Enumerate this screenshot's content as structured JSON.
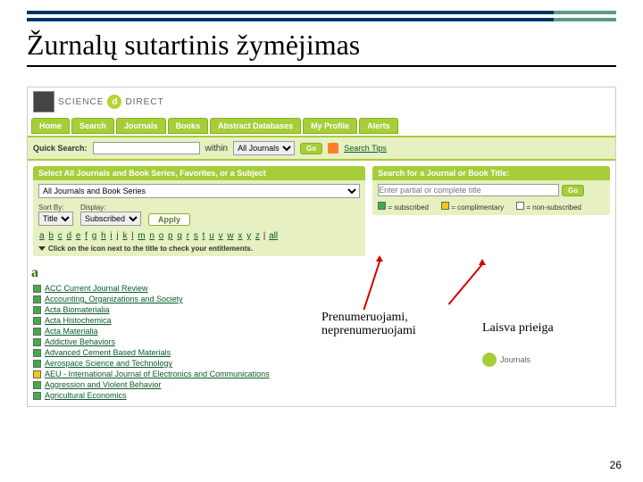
{
  "slide": {
    "title": "Žurnalų sutartinis žymėjimas",
    "page_number": "26"
  },
  "brand": {
    "logo_text": "SCIENCE",
    "direct_text": "DIRECT",
    "at": "d"
  },
  "tabs": [
    "Home",
    "Search",
    "Journals",
    "Books",
    "Abstract Databases",
    "My Profile",
    "Alerts"
  ],
  "quick_search": {
    "label": "Quick Search:",
    "within": "within",
    "scope_options": [
      "All Journals"
    ],
    "go": "Go",
    "tips": "Search Tips"
  },
  "left_panel": {
    "head": "Select All Journals and Book Series, Favorites, or a Subject",
    "dropdown_value": "All Journals and Book Series",
    "sort_label": "Sort By:",
    "sort_value": "Title",
    "display_label": "Display:",
    "display_value": "Subscribed",
    "apply": "Apply",
    "alpha": "a b c d e f g h i j k l m n o p q r s t u v w x y z | all",
    "entitle_note": "Click on the icon next to the title to check your entitlements."
  },
  "right_panel": {
    "head": "Search for a Journal or Book Title:",
    "placeholder": "Enter partial or complete title",
    "go": "Go",
    "legend": {
      "subscribed": "= subscribed",
      "nonsubscribed": "= non-subscribed",
      "complimentary": "= complimentary"
    }
  },
  "section_letter": "a",
  "journals": [
    {
      "color": "green",
      "title": "ACC Current Journal Review"
    },
    {
      "color": "green",
      "title": "Accounting, Organizations and Society"
    },
    {
      "color": "green",
      "title": "Acta Biomaterialia"
    },
    {
      "color": "green",
      "title": "Acta Histochemica"
    },
    {
      "color": "green",
      "title": "Acta Materialia"
    },
    {
      "color": "green",
      "title": "Addictive Behaviors"
    },
    {
      "color": "green",
      "title": "Advanced Cement Based Materials"
    },
    {
      "color": "green",
      "title": "Aerospace Science and Technology"
    },
    {
      "color": "yellow",
      "title": "AEU - International Journal of Electronics and Communications"
    },
    {
      "color": "green",
      "title": "Aggression and Violent Behavior"
    },
    {
      "color": "green",
      "title": "Agricultural Economics"
    }
  ],
  "callouts": {
    "c1": "Prenumeruojami, neprenumeruojami",
    "c2": "Laisva prieiga"
  },
  "journals_tag": "Journals",
  "colors": {
    "accent": "#a7cd3a",
    "panel_bg": "#e6f0c0",
    "link": "#0a5a2a",
    "arrow": "#d40000",
    "header_bar": "#003366",
    "header_seg": "#5a9a8a"
  }
}
